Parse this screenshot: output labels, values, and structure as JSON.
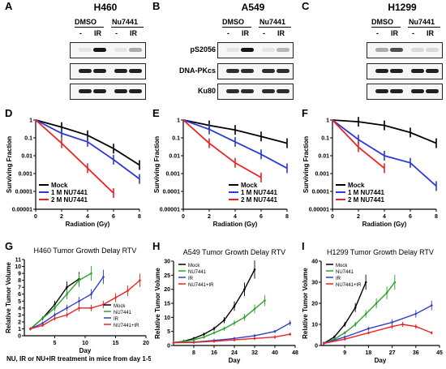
{
  "panel_labels": {
    "a": "A",
    "b": "B",
    "c": "C",
    "d": "D",
    "e": "E",
    "f": "F",
    "g": "G",
    "h": "H",
    "i": "I"
  },
  "blots": [
    {
      "title": "H460",
      "group1": "DMSO",
      "group2": "Nu7441",
      "lanes": [
        "-",
        "IR",
        "-",
        "IR"
      ],
      "rows": [
        "",
        "",
        ""
      ],
      "intensity": [
        [
          0.05,
          0.95,
          0.05,
          0.3
        ],
        [
          0.9,
          0.9,
          0.9,
          0.9
        ],
        [
          0.9,
          0.9,
          0.9,
          0.9
        ]
      ]
    },
    {
      "title": "A549",
      "group1": "DMSO",
      "group2": "Nu7441",
      "lanes": [
        "-",
        "IR",
        "-",
        "IR"
      ],
      "rows": [
        "pS2056",
        "DNA-PKcs",
        "Ku80"
      ],
      "intensity": [
        [
          0.05,
          0.95,
          0.05,
          0.25
        ],
        [
          0.85,
          0.85,
          0.85,
          0.85
        ],
        [
          0.85,
          0.85,
          0.85,
          0.85
        ]
      ]
    },
    {
      "title": "H1299",
      "group1": "DMSO",
      "group2": "Nu7441",
      "lanes": [
        "-",
        "IR",
        "-",
        "IR"
      ],
      "rows": [
        "",
        "",
        ""
      ],
      "intensity": [
        [
          0.3,
          0.7,
          0.1,
          0.1
        ],
        [
          0.9,
          0.9,
          0.9,
          0.9
        ],
        [
          0.9,
          0.9,
          0.9,
          0.9
        ]
      ]
    }
  ],
  "colors": {
    "mock": "#000000",
    "nu7441": "#2b3bd6",
    "ir_red": "#ee2222",
    "green": "#2aa52a",
    "blue": "#3240c8"
  },
  "chart_data": [
    {
      "id": "D",
      "type": "line",
      "title": "H460",
      "xlabel": "Radiation (Gy)",
      "ylabel": "Surviving Fraction",
      "yscale": "log",
      "xlim": [
        0,
        8
      ],
      "xticks": [
        "0",
        "2",
        "4",
        "6",
        "8"
      ],
      "ylim": [
        1e-05,
        1
      ],
      "yticks": [
        "1",
        "0.1",
        "0.01",
        "0.001",
        "0.0001",
        "0.00001"
      ],
      "legend_position": "bottom-left",
      "series": [
        {
          "name": "Mock",
          "color": "#000000",
          "x": [
            0,
            2,
            4,
            6,
            8
          ],
          "y": [
            1,
            0.4,
            0.14,
            0.025,
            0.003
          ]
        },
        {
          "name": "1   M NU7441",
          "color": "#2b3bd6",
          "x": [
            0,
            2,
            4,
            6,
            8
          ],
          "y": [
            1,
            0.18,
            0.06,
            0.006,
            0.0005
          ]
        },
        {
          "name": "2   M NU7441",
          "color": "#ee2222",
          "x": [
            0,
            2,
            4,
            6
          ],
          "y": [
            1,
            0.05,
            0.002,
            8e-05
          ]
        }
      ]
    },
    {
      "id": "E",
      "type": "line",
      "title": "A549",
      "xlabel": "Radiation (Gy)",
      "ylabel": "Surviving Fraction",
      "yscale": "log",
      "xlim": [
        0,
        8
      ],
      "xticks": [
        "0",
        "2",
        "4",
        "6",
        "8"
      ],
      "ylim": [
        1e-05,
        1
      ],
      "yticks": [
        "1",
        "0.1",
        "0.01",
        "0.001",
        "0.0001",
        "0.00001"
      ],
      "legend_position": "bottom-right",
      "series": [
        {
          "name": "Mock",
          "color": "#000000",
          "x": [
            0,
            2,
            4,
            6,
            8
          ],
          "y": [
            1,
            0.5,
            0.28,
            0.12,
            0.05
          ]
        },
        {
          "name": "1   M NU7441",
          "color": "#2b3bd6",
          "x": [
            0,
            2,
            4,
            6,
            8
          ],
          "y": [
            1,
            0.3,
            0.06,
            0.012,
            0.002
          ]
        },
        {
          "name": "2   M NU7441",
          "color": "#ee2222",
          "x": [
            0,
            2,
            4,
            6
          ],
          "y": [
            1,
            0.05,
            0.004,
            0.0006
          ]
        }
      ]
    },
    {
      "id": "F",
      "type": "line",
      "title": "H1299",
      "xlabel": "Radiation (Gy)",
      "ylabel": "Surviving Fraction",
      "yscale": "log",
      "xlim": [
        0,
        8
      ],
      "xticks": [
        "0",
        "2",
        "4",
        "6",
        "8"
      ],
      "ylim": [
        1e-05,
        1
      ],
      "yticks": [
        "1",
        "0.1",
        "0.01",
        "0.001",
        "0.0001",
        "0.00001"
      ],
      "legend_position": "bottom-left",
      "series": [
        {
          "name": "Mock",
          "color": "#000000",
          "x": [
            0,
            2,
            4,
            6,
            8
          ],
          "y": [
            1,
            0.8,
            0.5,
            0.2,
            0.05
          ]
        },
        {
          "name": "1   M NU7441",
          "color": "#2b3bd6",
          "x": [
            0,
            2,
            4,
            6,
            8
          ],
          "y": [
            1,
            0.08,
            0.01,
            0.004,
            0.0002
          ]
        },
        {
          "name": "2   M NU7441",
          "color": "#ee2222",
          "x": [
            0,
            2,
            4
          ],
          "y": [
            1,
            0.03,
            0.002
          ]
        }
      ]
    },
    {
      "id": "G",
      "type": "line",
      "title": "H460 Tumor Growth Delay RTV",
      "xlabel": "Day",
      "ylabel": "Relative Tumor Volume",
      "footer": "NU, IR or NU+IR treatment in mice from day 1-5",
      "xlim": [
        0,
        20
      ],
      "xticks": [
        "5",
        "10",
        "15",
        "20"
      ],
      "ylim": [
        0,
        11
      ],
      "yticks": [
        "0",
        "1",
        "2",
        "3",
        "4",
        "5",
        "6",
        "7",
        "8",
        "9",
        "10",
        "11"
      ],
      "legend_position": "bottom-right",
      "series": [
        {
          "name": "Mock",
          "color": "#000000",
          "x": [
            1,
            3,
            5,
            7,
            9
          ],
          "y": [
            1,
            2.5,
            4.5,
            7,
            8.2
          ]
        },
        {
          "name": "NU7441",
          "color": "#2aa52a",
          "x": [
            1,
            3,
            5,
            7,
            9,
            11
          ],
          "y": [
            1,
            2.5,
            4,
            6,
            8,
            9
          ]
        },
        {
          "name": "IR",
          "color": "#3240c8",
          "x": [
            1,
            3,
            5,
            7,
            9,
            11,
            13
          ],
          "y": [
            1,
            1.8,
            3,
            4,
            5,
            6,
            8.5
          ]
        },
        {
          "name": "NU7441+IR",
          "color": "#ee2222",
          "x": [
            1,
            3,
            5,
            7,
            9,
            11,
            13,
            15,
            17,
            19
          ],
          "y": [
            1,
            1.5,
            2.5,
            3,
            4,
            4,
            4.5,
            5.5,
            6.5,
            8
          ]
        }
      ]
    },
    {
      "id": "H",
      "type": "line",
      "title": "A549 Tumor Growth Delay RTV",
      "xlabel": "Day",
      "ylabel": "Relative Tumor Volume",
      "xlim": [
        0,
        48
      ],
      "xticks": [
        "8",
        "16",
        "24",
        "32",
        "40",
        "48"
      ],
      "ylim": [
        0,
        30
      ],
      "yticks": [
        "0",
        "5",
        "10",
        "15",
        "20",
        "25",
        "30"
      ],
      "legend_position": "top-left",
      "series": [
        {
          "name": "Mock",
          "color": "#000000",
          "x": [
            0,
            4,
            8,
            12,
            16,
            20,
            24,
            28,
            32
          ],
          "y": [
            1,
            1.5,
            2.5,
            4,
            6,
            9,
            14,
            20,
            27
          ]
        },
        {
          "name": "NU7441",
          "color": "#2aa52a",
          "x": [
            0,
            4,
            8,
            12,
            16,
            20,
            24,
            28,
            32,
            36
          ],
          "y": [
            1,
            1.4,
            2,
            3,
            4.5,
            6,
            8,
            10,
            13,
            16
          ]
        },
        {
          "name": "IR",
          "color": "#3240c8",
          "x": [
            0,
            8,
            16,
            24,
            32,
            40,
            46
          ],
          "y": [
            1,
            1.2,
            1.8,
            2.5,
            3.5,
            5,
            8
          ]
        },
        {
          "name": "NU7441+IR",
          "color": "#ee2222",
          "x": [
            0,
            8,
            16,
            24,
            32,
            40,
            46
          ],
          "y": [
            1,
            1.1,
            1.5,
            2,
            2.5,
            3,
            4
          ]
        }
      ]
    },
    {
      "id": "I",
      "type": "line",
      "title": "H1299 Tumor Growth Delay RTV",
      "xlabel": "Day",
      "ylabel": "Relative Tumor Volume",
      "xlim": [
        0,
        45
      ],
      "xticks": [
        "9",
        "18",
        "27",
        "36",
        "45"
      ],
      "ylim": [
        0,
        40
      ],
      "yticks": [
        "0",
        "10",
        "20",
        "30",
        "40"
      ],
      "legend_position": "top-left",
      "series": [
        {
          "name": "Mock",
          "color": "#000000",
          "x": [
            1,
            5,
            9,
            13,
            17
          ],
          "y": [
            1,
            4,
            10,
            18,
            30
          ]
        },
        {
          "name": "NU7441",
          "color": "#2aa52a",
          "x": [
            1,
            5,
            9,
            13,
            17,
            21,
            25,
            28
          ],
          "y": [
            1,
            3,
            6,
            10,
            15,
            20,
            25,
            30
          ]
        },
        {
          "name": "IR",
          "color": "#3240c8",
          "x": [
            1,
            9,
            18,
            27,
            36,
            42
          ],
          "y": [
            1,
            4,
            8,
            11,
            15,
            19
          ]
        },
        {
          "name": "NU7441+IR",
          "color": "#ee2222",
          "x": [
            1,
            9,
            18,
            27,
            31,
            36,
            42
          ],
          "y": [
            1,
            3,
            6,
            9,
            10,
            9,
            6
          ]
        }
      ]
    }
  ]
}
